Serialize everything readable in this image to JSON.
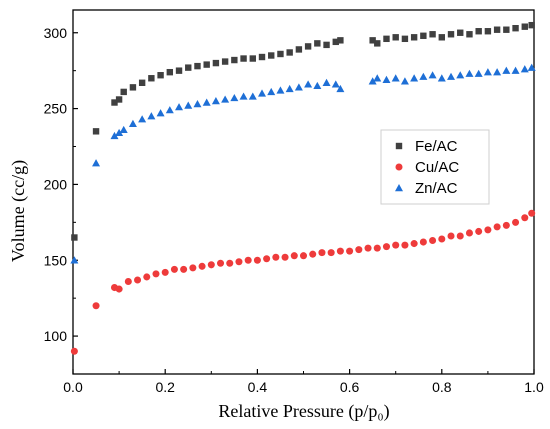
{
  "chart_data": {
    "type": "scatter",
    "xlabel": "Relative Pressure (p/p₀)",
    "ylabel": "Volume (cc/g)",
    "xlim": [
      0,
      1.0
    ],
    "ylim": [
      75,
      315
    ],
    "x_ticks": [
      "0.0",
      "0.2",
      "0.4",
      "0.6",
      "0.8",
      "1.0"
    ],
    "y_ticks": [
      "100",
      "150",
      "200",
      "250",
      "300"
    ],
    "legend_position": "right-center",
    "series": [
      {
        "name": "Fe/AC",
        "marker": "square",
        "color": "#404040",
        "x": [
          0.003,
          0.05,
          0.09,
          0.1,
          0.11,
          0.13,
          0.15,
          0.17,
          0.19,
          0.21,
          0.23,
          0.25,
          0.27,
          0.29,
          0.31,
          0.33,
          0.35,
          0.37,
          0.39,
          0.41,
          0.43,
          0.45,
          0.47,
          0.49,
          0.51,
          0.53,
          0.55,
          0.57,
          0.58,
          0.65,
          0.66,
          0.68,
          0.7,
          0.72,
          0.74,
          0.76,
          0.78,
          0.8,
          0.82,
          0.84,
          0.86,
          0.88,
          0.9,
          0.92,
          0.94,
          0.96,
          0.98,
          0.995
        ],
        "values": [
          165,
          235,
          254,
          256,
          261,
          264,
          267,
          270,
          272,
          274,
          275,
          277,
          278,
          279,
          280,
          281,
          282,
          283,
          283,
          284,
          285,
          286,
          287,
          289,
          291,
          293,
          292,
          294,
          295,
          295,
          293,
          296,
          297,
          296,
          297,
          298,
          299,
          297,
          299,
          300,
          299,
          301,
          301,
          302,
          302,
          303,
          304,
          305
        ]
      },
      {
        "name": "Cu/AC",
        "marker": "circle",
        "color": "#ee3b3b",
        "x": [
          0.003,
          0.05,
          0.09,
          0.1,
          0.12,
          0.14,
          0.16,
          0.18,
          0.2,
          0.22,
          0.24,
          0.26,
          0.28,
          0.3,
          0.32,
          0.34,
          0.36,
          0.38,
          0.4,
          0.42,
          0.44,
          0.46,
          0.48,
          0.5,
          0.52,
          0.54,
          0.56,
          0.58,
          0.6,
          0.62,
          0.64,
          0.66,
          0.68,
          0.7,
          0.72,
          0.74,
          0.76,
          0.78,
          0.8,
          0.82,
          0.84,
          0.86,
          0.88,
          0.9,
          0.92,
          0.94,
          0.96,
          0.98,
          0.995
        ],
        "values": [
          90,
          120,
          132,
          131,
          136,
          137,
          139,
          141,
          142,
          144,
          144,
          145,
          146,
          147,
          148,
          148,
          149,
          150,
          150,
          151,
          152,
          152,
          153,
          153,
          154,
          155,
          155,
          156,
          156,
          157,
          158,
          158,
          159,
          160,
          160,
          161,
          162,
          163,
          164,
          166,
          166,
          168,
          169,
          170,
          172,
          173,
          175,
          178,
          181
        ]
      },
      {
        "name": "Zn/AC",
        "marker": "triangle",
        "color": "#1e6fd6",
        "x": [
          0.003,
          0.05,
          0.09,
          0.1,
          0.11,
          0.13,
          0.15,
          0.17,
          0.19,
          0.21,
          0.23,
          0.25,
          0.27,
          0.29,
          0.31,
          0.33,
          0.35,
          0.37,
          0.39,
          0.41,
          0.43,
          0.45,
          0.47,
          0.49,
          0.51,
          0.53,
          0.55,
          0.57,
          0.58,
          0.65,
          0.66,
          0.68,
          0.7,
          0.72,
          0.74,
          0.76,
          0.78,
          0.8,
          0.82,
          0.84,
          0.86,
          0.88,
          0.9,
          0.92,
          0.94,
          0.96,
          0.98,
          0.995
        ],
        "values": [
          150,
          214,
          232,
          234,
          236,
          240,
          243,
          245,
          247,
          249,
          251,
          252,
          253,
          254,
          255,
          256,
          257,
          258,
          258,
          260,
          261,
          262,
          263,
          264,
          266,
          265,
          267,
          266,
          263,
          268,
          270,
          269,
          270,
          268,
          270,
          271,
          272,
          270,
          271,
          272,
          273,
          273,
          274,
          274,
          275,
          275,
          276,
          277
        ]
      }
    ]
  }
}
